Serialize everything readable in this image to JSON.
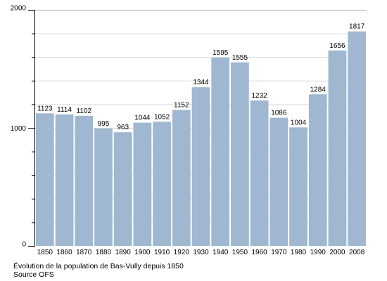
{
  "chart_data": {
    "type": "bar",
    "title": "",
    "xlabel": "",
    "ylabel": "",
    "ylim": [
      0,
      2000
    ],
    "yticks": [
      0,
      1000,
      2000
    ],
    "grid": true,
    "categories": [
      "1850",
      "1860",
      "1870",
      "1880",
      "1890",
      "1900",
      "1910",
      "1920",
      "1930",
      "1940",
      "1950",
      "1960",
      "1970",
      "1980",
      "1990",
      "2000",
      "2008"
    ],
    "values": [
      1123,
      1114,
      1102,
      995,
      963,
      1044,
      1052,
      1152,
      1344,
      1595,
      1555,
      1232,
      1086,
      1004,
      1284,
      1656,
      1817
    ],
    "bar_color": "#9fb7d0",
    "grid_color": "#d9d9d9",
    "axis_color": "#000000"
  },
  "caption": {
    "line1": "Évolution de la population de Bas-Vully depuis 1850",
    "line2": "Source OFS"
  }
}
